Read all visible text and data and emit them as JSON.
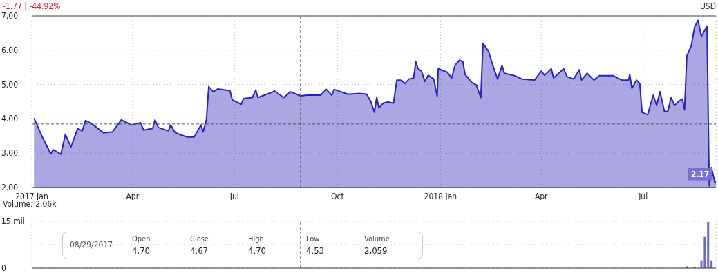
{
  "chart_data": [
    {
      "type": "area",
      "subtitle": "-1.77 | -44.92%",
      "ylabel": "USD",
      "x": [
        "2017-01-03",
        "2017-01-08",
        "2017-01-11",
        "2017-01-18",
        "2017-01-20",
        "2017-01-27",
        "2017-01-31",
        "2017-02-05",
        "2017-02-11",
        "2017-02-15",
        "2017-02-18",
        "2017-02-24",
        "2017-03-06",
        "2017-03-14",
        "2017-03-22",
        "2017-03-31",
        "2017-04-08",
        "2017-04-11",
        "2017-04-19",
        "2017-04-21",
        "2017-04-24",
        "2017-05-03",
        "2017-05-05",
        "2017-05-09",
        "2017-05-15",
        "2017-05-20",
        "2017-05-26",
        "2017-06-01",
        "2017-06-03",
        "2017-06-06",
        "2017-06-08",
        "2017-06-12",
        "2017-06-16",
        "2017-06-27",
        "2017-06-29",
        "2017-07-07",
        "2017-07-09",
        "2017-07-17",
        "2017-07-20",
        "2017-07-22",
        "2017-08-06",
        "2017-08-14",
        "2017-08-20",
        "2017-08-29",
        "2017-09-04",
        "2017-09-16",
        "2017-09-21",
        "2017-09-26",
        "2017-09-28",
        "2017-10-10",
        "2017-10-12",
        "2017-10-20",
        "2017-10-27",
        "2017-10-31",
        "2017-11-03",
        "2017-11-05",
        "2017-11-07",
        "2017-11-11",
        "2017-11-15",
        "2017-11-20",
        "2017-11-23",
        "2017-11-27",
        "2017-11-30",
        "2017-12-04",
        "2017-12-08",
        "2017-12-10",
        "2017-12-12",
        "2017-12-15",
        "2017-12-18",
        "2017-12-21",
        "2017-12-26",
        "2017-12-29",
        "2017-12-30",
        "2018-01-07",
        "2018-01-11",
        "2018-01-14",
        "2018-01-18",
        "2018-01-21",
        "2018-01-23",
        "2018-01-29",
        "2018-02-02",
        "2018-02-06",
        "2018-02-08",
        "2018-02-13",
        "2018-02-17",
        "2018-02-21",
        "2018-02-25",
        "2018-02-27",
        "2018-03-08",
        "2018-03-15",
        "2018-03-26",
        "2018-04-01",
        "2018-04-04",
        "2018-04-10",
        "2018-04-12",
        "2018-04-21",
        "2018-04-24",
        "2018-04-30",
        "2018-05-05",
        "2018-05-07",
        "2018-05-12",
        "2018-05-18",
        "2018-05-23",
        "2018-06-04",
        "2018-06-12",
        "2018-06-18",
        "2018-06-19",
        "2018-06-21",
        "2018-06-25",
        "2018-06-28",
        "2018-06-30",
        "2018-07-05",
        "2018-07-10",
        "2018-07-13",
        "2018-07-16",
        "2018-07-20",
        "2018-07-23",
        "2018-07-26",
        "2018-07-29",
        "2018-08-02",
        "2018-08-05",
        "2018-08-07",
        "2018-08-09",
        "2018-08-13",
        "2018-08-16",
        "2018-08-19",
        "2018-08-22",
        "2018-08-27",
        "2018-08-29",
        "2018-08-31",
        "2018-09-03",
        "2018-09-04"
      ],
      "series": [
        {
          "color": "#2a22b8",
          "values": [
            4.02,
            3.65,
            3.43,
            2.98,
            3.1,
            2.97,
            3.55,
            3.18,
            3.72,
            3.65,
            3.95,
            3.85,
            3.59,
            3.62,
            3.97,
            3.82,
            3.89,
            3.67,
            3.72,
            3.97,
            3.75,
            3.65,
            3.82,
            3.6,
            3.52,
            3.47,
            3.47,
            3.82,
            3.62,
            3.99,
            4.94,
            4.79,
            4.87,
            4.82,
            4.56,
            4.42,
            4.59,
            4.62,
            4.84,
            4.62,
            4.81,
            4.62,
            4.79,
            4.67,
            4.69,
            4.69,
            4.86,
            4.69,
            4.86,
            4.72,
            4.72,
            4.74,
            4.72,
            4.49,
            4.19,
            4.62,
            4.32,
            4.46,
            4.49,
            4.46,
            5.13,
            5.13,
            5.03,
            5.16,
            5.19,
            5.66,
            5.46,
            5.39,
            5.09,
            5.27,
            5.16,
            4.66,
            5.46,
            5.36,
            5.19,
            5.56,
            5.71,
            5.66,
            5.29,
            5.06,
            4.99,
            4.62,
            6.2,
            5.96,
            5.53,
            5.16,
            5.56,
            5.33,
            5.26,
            5.16,
            5.13,
            5.39,
            5.27,
            5.46,
            5.19,
            5.46,
            5.23,
            5.16,
            5.43,
            5.13,
            5.33,
            5.13,
            5.26,
            5.26,
            5.13,
            5.13,
            5.29,
            4.89,
            5.13,
            5.03,
            4.19,
            4.12,
            4.69,
            4.39,
            4.79,
            4.22,
            4.22,
            4.62,
            4.39,
            4.52,
            4.58,
            4.26,
            5.83,
            6.13,
            6.68,
            6.87,
            6.4,
            6.7,
            2.05,
            2.58,
            2.15,
            2.17
          ]
        }
      ],
      "xlim": [
        "2017-01-01",
        "2018-09-04"
      ],
      "xticks": [
        {
          "value": "2017-01-01",
          "label": "2017 Jan"
        },
        {
          "value": "2017-04-01",
          "label": "Apr"
        },
        {
          "value": "2017-07-01",
          "label": "Jul"
        },
        {
          "value": "2017-10-01",
          "label": "Oct"
        },
        {
          "value": "2018-01-01",
          "label": "2018 Jan"
        },
        {
          "value": "2018-04-01",
          "label": "Apr"
        },
        {
          "value": "2018-07-01",
          "label": "Jul"
        }
      ],
      "ylim": [
        2,
        7
      ],
      "yticks": [
        {
          "value": 2,
          "label": "2.00"
        },
        {
          "value": 3,
          "label": "3.00"
        },
        {
          "value": 4,
          "label": "4.00"
        },
        {
          "value": 5,
          "label": "5.00"
        },
        {
          "value": 6,
          "label": "6.00"
        },
        {
          "value": 7,
          "label": "7.00"
        }
      ],
      "grid": true,
      "ref_lines": [
        {
          "axis": "x",
          "value": "2017-08-29",
          "label": null,
          "color": "#555555",
          "line_style": "dashed"
        },
        {
          "axis": "y",
          "value": 3.85,
          "label": null,
          "color": "#555555",
          "line_style": "dashed"
        }
      ],
      "annotations": [
        {
          "text": "2.17",
          "x": "2018-09-04",
          "y": 2.17
        },
        "08/29/2017",
        "Open",
        "4.70",
        "Close",
        "4.67",
        "High",
        "4.70",
        "Low",
        "4.53",
        "Volume",
        "2,059"
      ]
    },
    {
      "type": "bar",
      "title": "Volume: 2.06k",
      "x": [
        "2018-08-09",
        "2018-08-16",
        "2018-08-22",
        "2018-08-25",
        "2018-08-28",
        "2018-08-31"
      ],
      "values": [
        0.6,
        0.4,
        2.5,
        10,
        14.8,
        2.5
      ],
      "color": "#6e68cc",
      "xlim": [
        "2017-01-01",
        "2018-09-04"
      ],
      "xticks": [
        {
          "value": "2017-01-01",
          "label": null
        },
        {
          "value": "2017-04-01",
          "label": null
        },
        {
          "value": "2017-07-01",
          "label": null
        },
        {
          "value": "2017-10-01",
          "label": null
        },
        {
          "value": "2018-01-01",
          "label": null
        },
        {
          "value": "2018-04-01",
          "label": null
        },
        {
          "value": "2018-07-01",
          "label": null
        }
      ],
      "ylim": [
        0,
        15
      ],
      "yticks": [
        {
          "value": 0,
          "label": "0"
        },
        {
          "value": 7.5,
          "label": null
        },
        {
          "value": 15,
          "label": "15 mil"
        }
      ],
      "tick_labels": "y",
      "grid": true,
      "ref_lines": [
        {
          "axis": "x",
          "value": "2017-08-29",
          "label": null,
          "color": "#555555",
          "line_style": "dashed"
        }
      ]
    }
  ]
}
